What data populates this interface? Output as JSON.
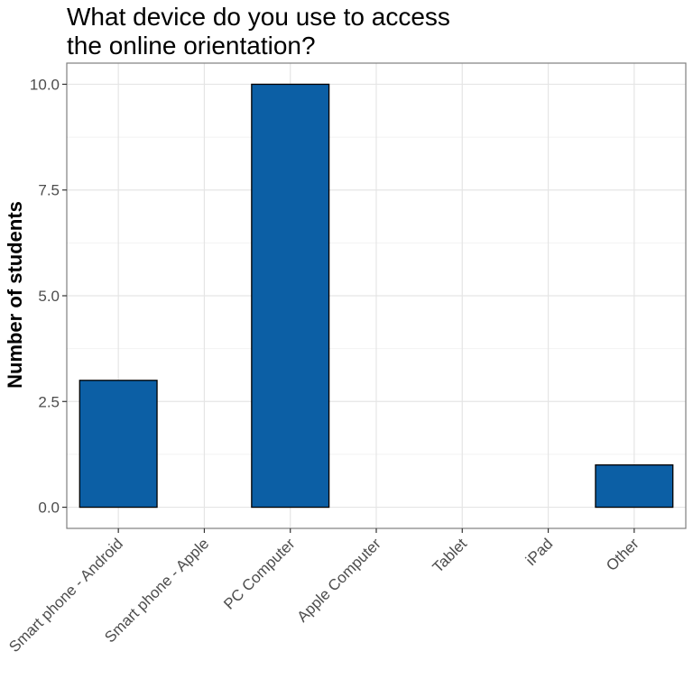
{
  "chart_data": {
    "type": "bar",
    "title_lines": [
      "What device do you use to access",
      "the online orientation?"
    ],
    "xlabel": "",
    "ylabel": "Number of students",
    "categories": [
      "Smart phone - Android",
      "Smart phone - Apple",
      "PC Computer",
      "Apple Computer",
      "Tablet",
      "iPad",
      "Other"
    ],
    "values": [
      3,
      0,
      10,
      0,
      0,
      0,
      1
    ],
    "ylim": [
      -0.5,
      10.5
    ],
    "yticks": [
      0.0,
      2.5,
      5.0,
      7.5,
      10.0
    ],
    "ytick_labels": [
      "0.0",
      "2.5",
      "5.0",
      "7.5",
      "10.0"
    ],
    "grid": true,
    "bar_color": "#0c5fa5",
    "bar_outline": "#000000",
    "panel_border": "#7f7f7f",
    "grid_major_color": "#e5e5e5",
    "grid_minor_color": "#f2f2f2"
  }
}
